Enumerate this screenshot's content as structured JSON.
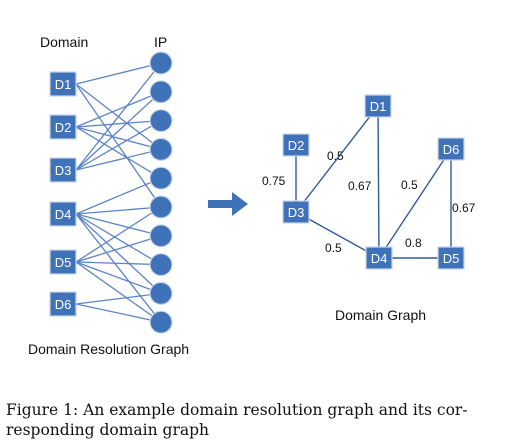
{
  "left_graph": {
    "header_domain": "Domain",
    "header_ip": "IP",
    "title": "Domain Resolution Graph",
    "domains": [
      "D1",
      "D2",
      "D3",
      "D4",
      "D5",
      "D6"
    ],
    "ip_count": 10,
    "edges": [
      [
        0,
        0
      ],
      [
        0,
        3
      ],
      [
        0,
        5
      ],
      [
        1,
        1
      ],
      [
        1,
        2
      ],
      [
        1,
        3
      ],
      [
        1,
        4
      ],
      [
        2,
        0
      ],
      [
        2,
        1
      ],
      [
        2,
        2
      ],
      [
        2,
        3
      ],
      [
        3,
        4
      ],
      [
        3,
        5
      ],
      [
        3,
        6
      ],
      [
        3,
        7
      ],
      [
        3,
        8
      ],
      [
        3,
        9
      ],
      [
        4,
        5
      ],
      [
        4,
        6
      ],
      [
        4,
        7
      ],
      [
        4,
        8
      ],
      [
        4,
        9
      ],
      [
        5,
        8
      ],
      [
        5,
        9
      ]
    ]
  },
  "right_graph": {
    "title": "Domain Graph",
    "nodes": [
      "D1",
      "D2",
      "D3",
      "D4",
      "D5",
      "D6"
    ],
    "edges": [
      {
        "from": "D2",
        "to": "D3",
        "weight": "0.75"
      },
      {
        "from": "D3",
        "to": "D1",
        "weight": "0.5"
      },
      {
        "from": "D1",
        "to": "D4",
        "weight": "0.67"
      },
      {
        "from": "D3",
        "to": "D4",
        "weight": "0.5"
      },
      {
        "from": "D4",
        "to": "D6",
        "weight": "0.5"
      },
      {
        "from": "D4",
        "to": "D5",
        "weight": "0.8"
      },
      {
        "from": "D6",
        "to": "D5",
        "weight": "0.67"
      }
    ]
  },
  "caption": {
    "line1": "Figure 1:  An example domain resolution graph and its cor-",
    "line2": "responding domain graph"
  },
  "colors": {
    "node_fill": "#3f72b8",
    "node_stroke": "#2a5590",
    "edge": "#5b84c4",
    "edge_dark": "#2f5aa0",
    "arrow": "#3f72b8"
  }
}
